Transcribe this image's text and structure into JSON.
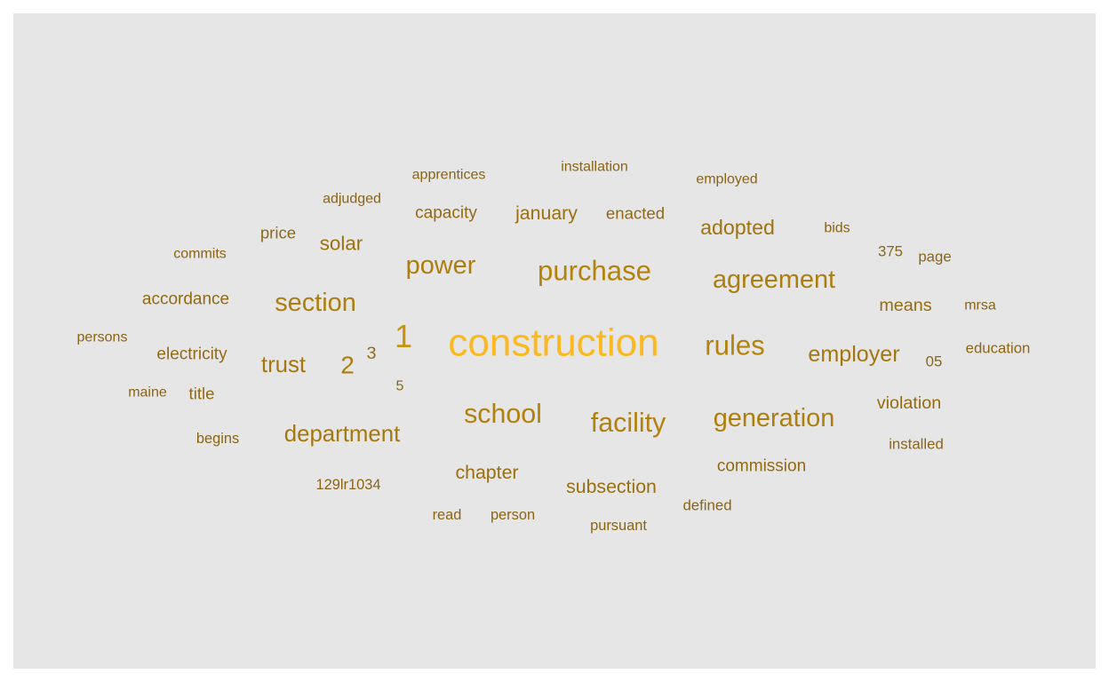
{
  "chart_data": {
    "type": "wordcloud",
    "title": "",
    "colors": {
      "background": "#e6e6e6",
      "scale": [
        "#8a6414",
        "#b8860b",
        "#fbb81f"
      ]
    },
    "words": [
      {
        "text": "construction",
        "weight": 100
      },
      {
        "text": "1",
        "weight": 78
      },
      {
        "text": "rules",
        "weight": 66
      },
      {
        "text": "purchase",
        "weight": 66
      },
      {
        "text": "facility",
        "weight": 64
      },
      {
        "text": "school",
        "weight": 64
      },
      {
        "text": "agreement",
        "weight": 60
      },
      {
        "text": "power",
        "weight": 60
      },
      {
        "text": "generation",
        "weight": 60
      },
      {
        "text": "section",
        "weight": 60
      },
      {
        "text": "2",
        "weight": 58
      },
      {
        "text": "department",
        "weight": 52
      },
      {
        "text": "trust",
        "weight": 52
      },
      {
        "text": "employer",
        "weight": 50
      },
      {
        "text": "adopted",
        "weight": 45
      },
      {
        "text": "solar",
        "weight": 43
      },
      {
        "text": "subsection",
        "weight": 40
      },
      {
        "text": "chapter",
        "weight": 40
      },
      {
        "text": "january",
        "weight": 40
      },
      {
        "text": "3",
        "weight": 36
      },
      {
        "text": "means",
        "weight": 36
      },
      {
        "text": "violation",
        "weight": 36
      },
      {
        "text": "commission",
        "weight": 34
      },
      {
        "text": "electricity",
        "weight": 34
      },
      {
        "text": "accordance",
        "weight": 34
      },
      {
        "text": "capacity",
        "weight": 34
      },
      {
        "text": "enacted",
        "weight": 33
      },
      {
        "text": "price",
        "weight": 33
      },
      {
        "text": "title",
        "weight": 33
      },
      {
        "text": "05",
        "weight": 28
      },
      {
        "text": "5",
        "weight": 26
      },
      {
        "text": "installed",
        "weight": 28
      },
      {
        "text": "education",
        "weight": 28
      },
      {
        "text": "defined",
        "weight": 28
      },
      {
        "text": "page",
        "weight": 28
      },
      {
        "text": "375",
        "weight": 28
      },
      {
        "text": "pursuant",
        "weight": 27
      },
      {
        "text": "person",
        "weight": 27
      },
      {
        "text": "read",
        "weight": 27
      },
      {
        "text": "129lr1034",
        "weight": 27
      },
      {
        "text": "begins",
        "weight": 27
      },
      {
        "text": "maine",
        "weight": 26
      },
      {
        "text": "persons",
        "weight": 26
      },
      {
        "text": "commits",
        "weight": 26
      },
      {
        "text": "adjudged",
        "weight": 26
      },
      {
        "text": "apprentices",
        "weight": 26
      },
      {
        "text": "installation",
        "weight": 26
      },
      {
        "text": "employed",
        "weight": 26
      },
      {
        "text": "bids",
        "weight": 26
      },
      {
        "text": "mrsa",
        "weight": 26
      }
    ]
  }
}
